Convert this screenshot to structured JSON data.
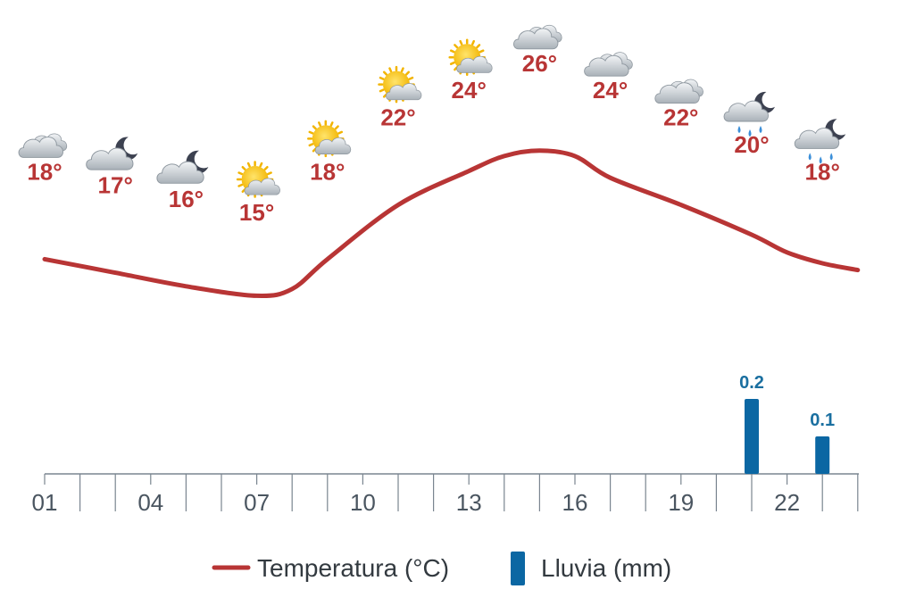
{
  "chart_data": {
    "type": "line",
    "hours": [
      "01",
      "02",
      "03",
      "04",
      "05",
      "06",
      "07",
      "08",
      "09",
      "10",
      "11",
      "12",
      "13",
      "14",
      "15",
      "16",
      "17",
      "18",
      "19",
      "20",
      "21",
      "22",
      "23"
    ],
    "x_tick_labels": [
      "01",
      "04",
      "07",
      "10",
      "13",
      "16",
      "19",
      "22"
    ],
    "series": [
      {
        "name": "Temperatura (°C)",
        "color": "#b83535",
        "kind": "line",
        "icons": [
          {
            "hour": 1,
            "temp": 18,
            "label": "18°",
            "icon": "cloudy-icon"
          },
          {
            "hour": 3,
            "temp": 17,
            "label": "17°",
            "icon": "cloudy-night-icon"
          },
          {
            "hour": 5,
            "temp": 16,
            "label": "16°",
            "icon": "cloudy-night-icon"
          },
          {
            "hour": 7,
            "temp": 15,
            "label": "15°",
            "icon": "sun-cloud-icon"
          },
          {
            "hour": 9,
            "temp": 18,
            "label": "18°",
            "icon": "sun-cloud-icon"
          },
          {
            "hour": 11,
            "temp": 22,
            "label": "22°",
            "icon": "sun-cloud-icon"
          },
          {
            "hour": 13,
            "temp": 24,
            "label": "24°",
            "icon": "sun-cloud-icon"
          },
          {
            "hour": 15,
            "temp": 26,
            "label": "26°",
            "icon": "cloudy-icon"
          },
          {
            "hour": 17,
            "temp": 24,
            "label": "24°",
            "icon": "cloudy-icon"
          },
          {
            "hour": 19,
            "temp": 22,
            "label": "22°",
            "icon": "cloudy-icon"
          },
          {
            "hour": 21,
            "temp": 20,
            "label": "20°",
            "icon": "rain-night-icon"
          },
          {
            "hour": 23,
            "temp": 18,
            "label": "18°",
            "icon": "rain-night-icon"
          }
        ],
        "curve": [
          {
            "hour": 1,
            "temp": 18.0
          },
          {
            "hour": 3,
            "temp": 17.0
          },
          {
            "hour": 5,
            "temp": 16.0
          },
          {
            "hour": 7,
            "temp": 15.3
          },
          {
            "hour": 8,
            "temp": 15.8
          },
          {
            "hour": 9,
            "temp": 18.0
          },
          {
            "hour": 11,
            "temp": 22.0
          },
          {
            "hour": 13,
            "temp": 24.5
          },
          {
            "hour": 14,
            "temp": 25.6
          },
          {
            "hour": 15,
            "temp": 26.0
          },
          {
            "hour": 16,
            "temp": 25.6
          },
          {
            "hour": 17,
            "temp": 24.0
          },
          {
            "hour": 19,
            "temp": 22.0
          },
          {
            "hour": 21,
            "temp": 19.8
          },
          {
            "hour": 22,
            "temp": 18.5
          },
          {
            "hour": 23,
            "temp": 17.7
          },
          {
            "hour": 24,
            "temp": 17.2
          }
        ]
      },
      {
        "name": "Lluvia (mm)",
        "color": "#0b67a3",
        "kind": "bar",
        "bars": [
          {
            "hour": 21,
            "value": 0.2,
            "label": "0.2"
          },
          {
            "hour": 23,
            "value": 0.1,
            "label": "0.1"
          }
        ]
      }
    ],
    "legend": {
      "position": "bottom-center",
      "items": [
        {
          "label": "Temperatura (°C)",
          "color": "#b83535",
          "shape": "line"
        },
        {
          "label": "Lluvia (mm)",
          "color": "#0b67a3",
          "shape": "bar"
        }
      ]
    },
    "grid": false,
    "title": "",
    "xlabel": "",
    "ylabel": ""
  }
}
